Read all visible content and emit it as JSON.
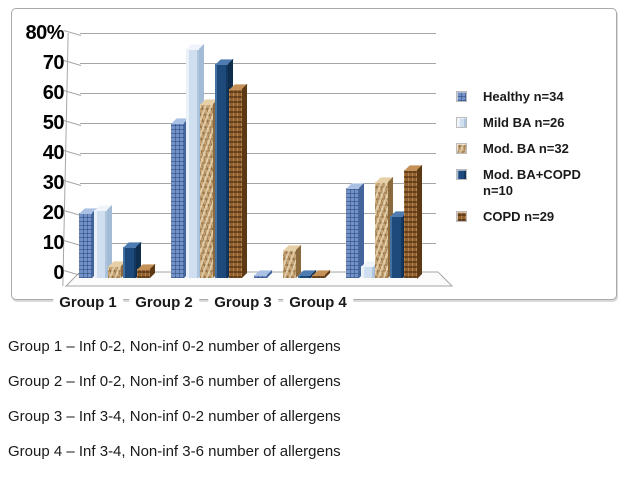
{
  "chart_data": {
    "type": "bar",
    "style": "3d-bar",
    "title": "",
    "xlabel": "",
    "ylabel": "%",
    "ylim": [
      0,
      80
    ],
    "grid": true,
    "legend_position": "right",
    "yticks": [
      "80%",
      "70",
      "60",
      "50",
      "40",
      "30",
      "20",
      "10",
      "0"
    ],
    "categories": [
      "Group 1",
      "Group 2",
      "Group 3",
      "Group 4"
    ],
    "series": [
      {
        "name": "Healthy n=34",
        "texture": "healthy",
        "values": [
          21,
          50,
          1,
          29
        ],
        "colors": {
          "base": "#7292c8",
          "light": "#aac1e3",
          "dark": "#44649c"
        }
      },
      {
        "name": "Mild BA n=26",
        "texture": "mild",
        "values": [
          22,
          74,
          0,
          4
        ],
        "colors": {
          "base": "#cfdff0",
          "light": "#eef4fa",
          "dark": "#a3bbd4"
        }
      },
      {
        "name": "Mod. BA n=32",
        "texture": "modba",
        "values": [
          4,
          56,
          9,
          31
        ],
        "colors": {
          "base": "#c6a476",
          "light": "#e5cfa6",
          "dark": "#8a6a3c"
        }
      },
      {
        "name": "Mod. BA+COPD n=10",
        "texture": "navy",
        "values": [
          10,
          69,
          1,
          20
        ],
        "colors": {
          "base": "#1d4a7a",
          "light": "#4f7cb0",
          "dark": "#0f2e4e"
        }
      },
      {
        "name": "COPD n=29",
        "texture": "copd",
        "values": [
          3,
          61,
          1,
          35
        ],
        "colors": {
          "base": "#91602f",
          "light": "#c49058",
          "dark": "#5c3814"
        }
      }
    ]
  },
  "notes": [
    "Group 1 – Inf 0-2, Non-inf 0-2 number of allergens",
    "Group 2 – Inf 0-2, Non-inf 3-6 number of allergens",
    "Group 3 – Inf 3-4, Non-inf 0-2 number of allergens",
    "Group 4 – Inf 3-4, Non-inf 3-6 number of allergens"
  ]
}
